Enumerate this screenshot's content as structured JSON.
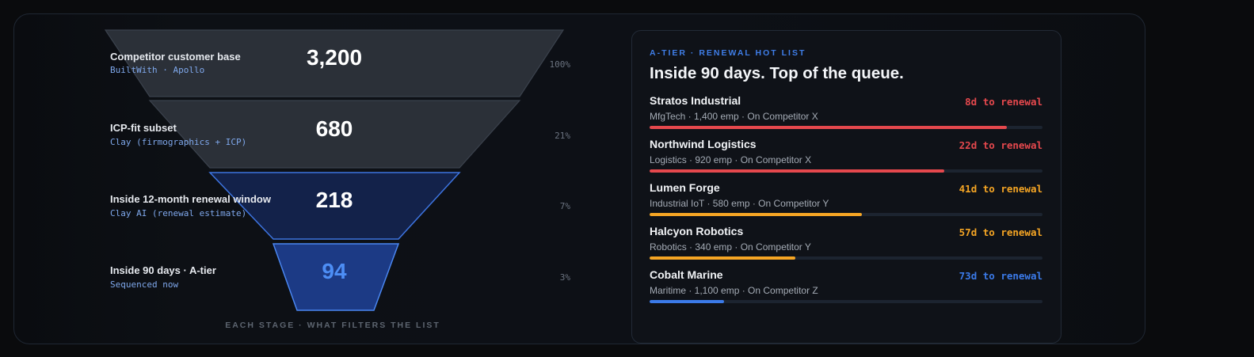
{
  "funnel": {
    "stages": [
      {
        "title": "Competitor customer base",
        "source": "BuiltWith · Apollo",
        "count": "3,200",
        "pct": "100%"
      },
      {
        "title": "ICP-fit subset",
        "source": "Clay (firmographics + ICP)",
        "count": "680",
        "pct": "21%"
      },
      {
        "title": "Inside 12-month renewal window",
        "source": "Clay AI (renewal estimate)",
        "count": "218",
        "pct": "7%"
      },
      {
        "title": "Inside 90 days · A-tier",
        "source": "Sequenced now",
        "count": "94",
        "pct": "3%"
      }
    ],
    "caption": "EACH STAGE · WHAT FILTERS THE LIST"
  },
  "hotlist": {
    "eyebrow": "A-TIER · RENEWAL HOT LIST",
    "title": "Inside 90 days. Top of the queue.",
    "items": [
      {
        "name": "Stratos Industrial",
        "meta": "MfgTech · 1,400 emp · On Competitor X",
        "days": "8d to renewal",
        "color": "#e5484d",
        "progress": 0.91
      },
      {
        "name": "Northwind Logistics",
        "meta": "Logistics · 920 emp · On Competitor X",
        "days": "22d to renewal",
        "color": "#e5484d",
        "progress": 0.75
      },
      {
        "name": "Lumen Forge",
        "meta": "Industrial IoT · 580 emp · On Competitor Y",
        "days": "41d to renewal",
        "color": "#f5a524",
        "progress": 0.54
      },
      {
        "name": "Halcyon Robotics",
        "meta": "Robotics · 340 emp · On Competitor Y",
        "days": "57d to renewal",
        "color": "#f5a524",
        "progress": 0.37
      },
      {
        "name": "Cobalt Marine",
        "meta": "Maritime · 1,100 emp · On Competitor Z",
        "days": "73d to renewal",
        "color": "#3b7ae8",
        "progress": 0.19
      }
    ]
  }
}
